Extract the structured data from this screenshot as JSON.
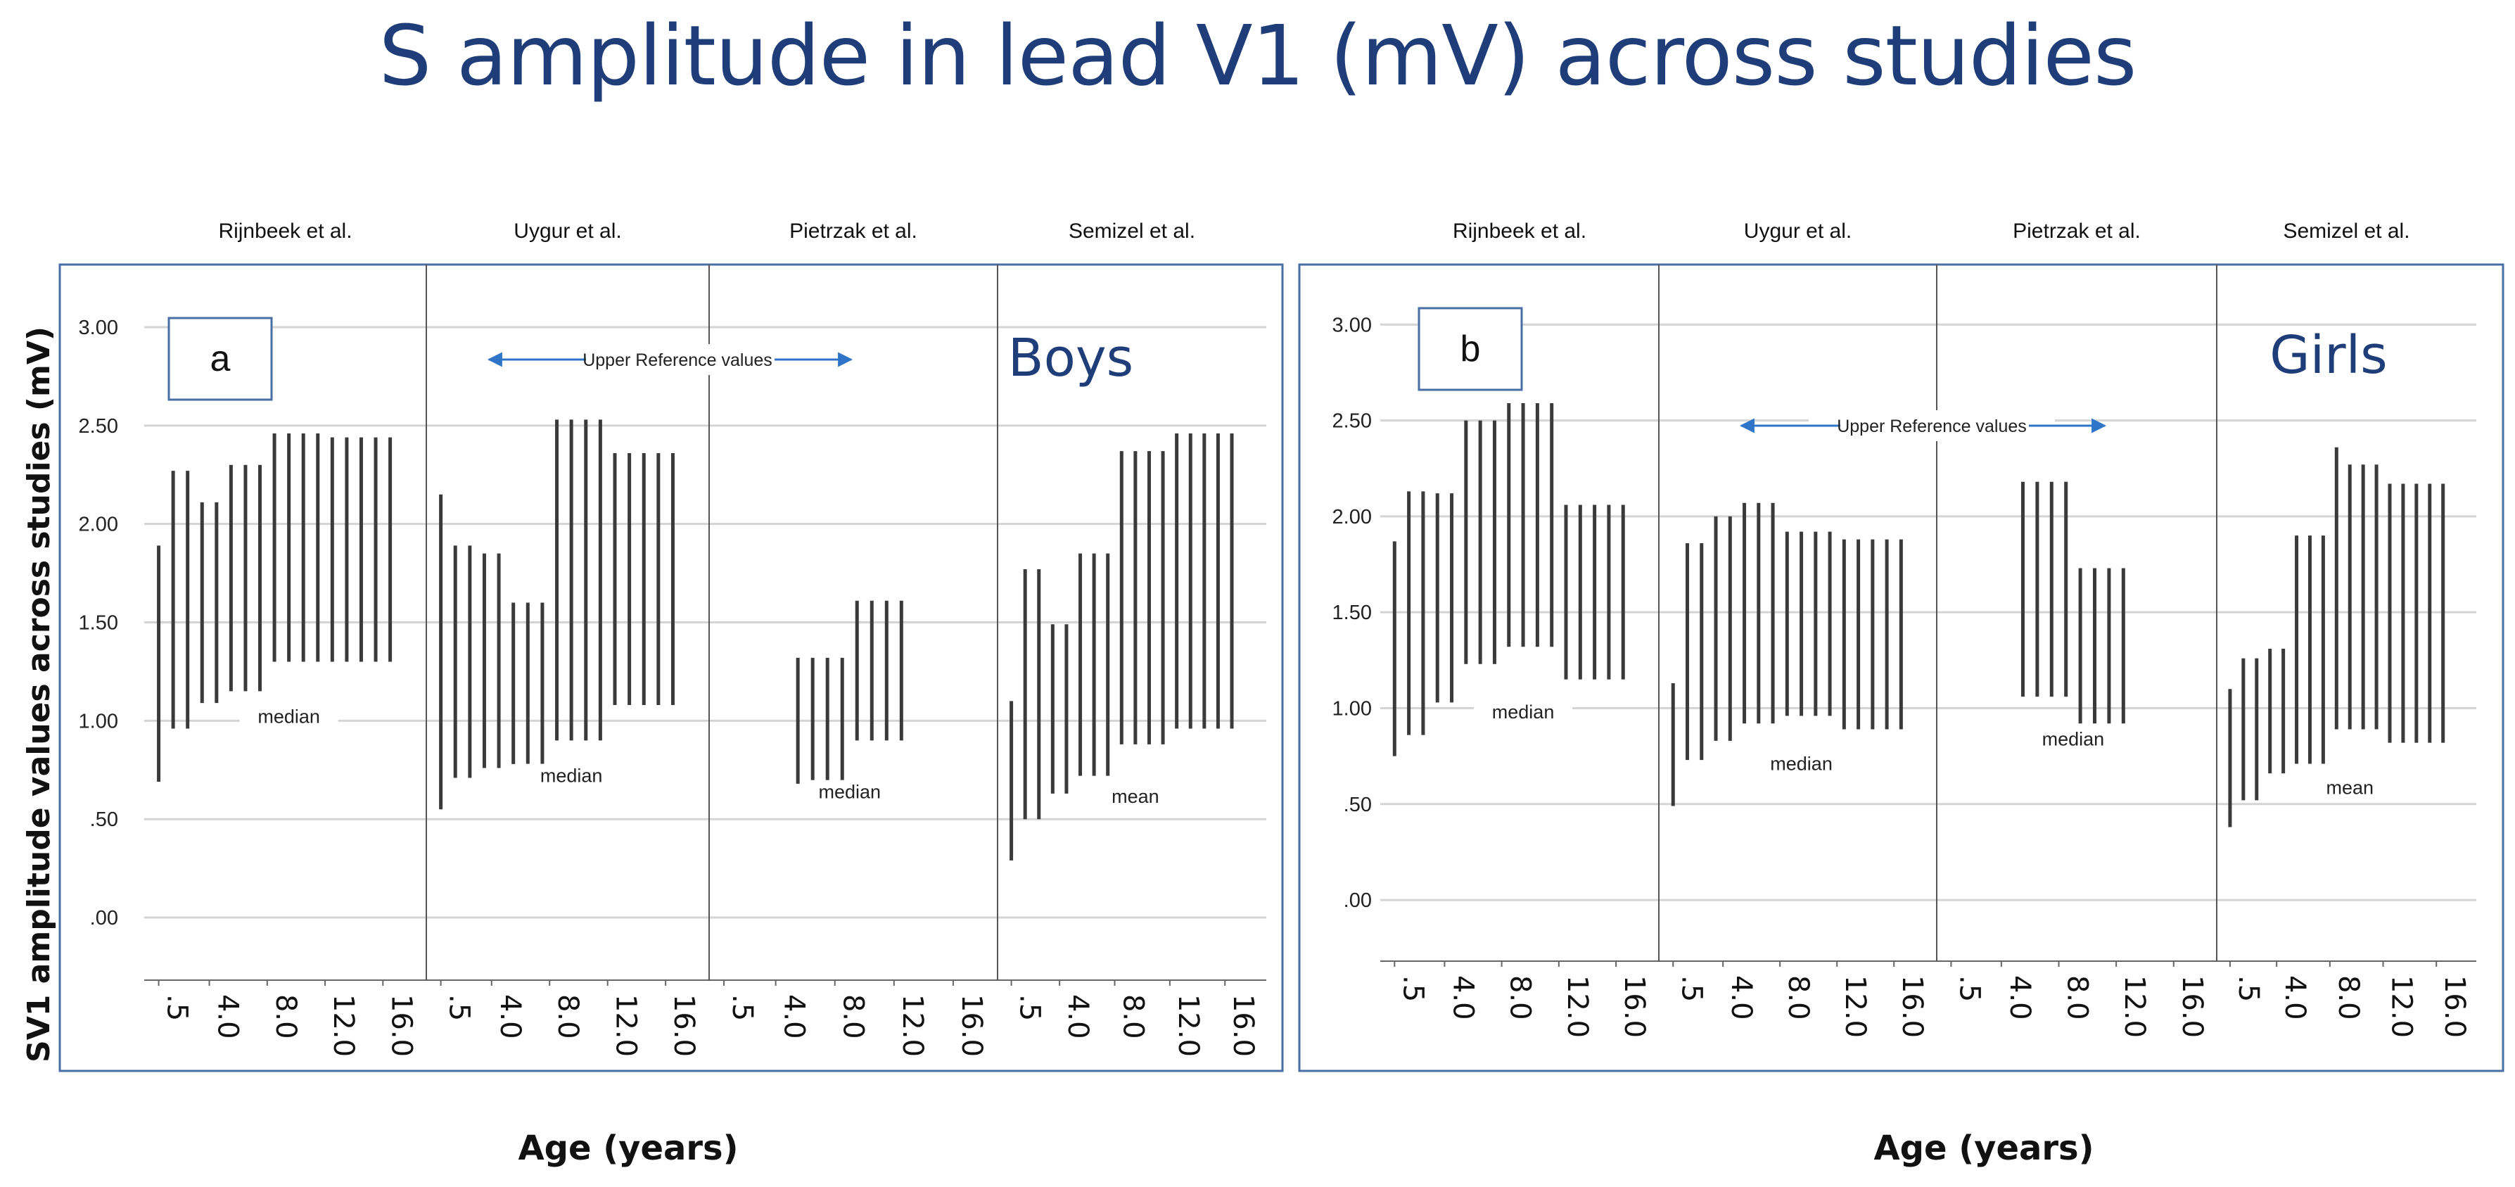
{
  "title": "S amplitude in lead V1 (mV) across studies",
  "y_axis_label": "SV1 amplitude values across studies (mV)",
  "x_axis_label": "Age (years)",
  "chart_data": [
    {
      "type": "range-bar",
      "panel_letter": "a",
      "group_label": "Boys",
      "arrow_note": "Upper Reference values",
      "ylabel": "SV1 amplitude values across studies (mV)",
      "xlabel": "Age (years)",
      "ylim": [
        -0.15,
        3.1
      ],
      "yticks": [
        ".00",
        ".50",
        "1.00",
        "1.50",
        "2.00",
        "2.50",
        "3.00"
      ],
      "grid": true,
      "x_ticks": [
        ".5",
        "4.0",
        "8.0",
        "12.0",
        "16.0"
      ],
      "x_tick_values": [
        0.5,
        4,
        8,
        12,
        16
      ],
      "xlim": [
        -0.5,
        19
      ],
      "facets": [
        {
          "name": "Rijnbeek et al.",
          "stat_label": "median",
          "ranges": [
            {
              "x": 0.5,
              "low": 0.69,
              "high": 1.89
            },
            {
              "x": 1.5,
              "low": 0.96,
              "high": 2.27
            },
            {
              "x": 2.5,
              "low": 0.96,
              "high": 2.27
            },
            {
              "x": 3.5,
              "low": 1.09,
              "high": 2.11
            },
            {
              "x": 4.5,
              "low": 1.09,
              "high": 2.11
            },
            {
              "x": 5.5,
              "low": 1.15,
              "high": 2.3
            },
            {
              "x": 6.5,
              "low": 1.15,
              "high": 2.3
            },
            {
              "x": 7.5,
              "low": 1.15,
              "high": 2.3
            },
            {
              "x": 8.5,
              "low": 1.3,
              "high": 2.46
            },
            {
              "x": 9.5,
              "low": 1.3,
              "high": 2.46
            },
            {
              "x": 10.5,
              "low": 1.3,
              "high": 2.46
            },
            {
              "x": 11.5,
              "low": 1.3,
              "high": 2.46
            },
            {
              "x": 12.5,
              "low": 1.3,
              "high": 2.44
            },
            {
              "x": 13.5,
              "low": 1.3,
              "high": 2.44
            },
            {
              "x": 14.5,
              "low": 1.3,
              "high": 2.44
            },
            {
              "x": 15.5,
              "low": 1.3,
              "high": 2.44
            },
            {
              "x": 16.5,
              "low": 1.3,
              "high": 2.44
            }
          ]
        },
        {
          "name": "Uygur et al.",
          "stat_label": "median",
          "ranges": [
            {
              "x": 0.5,
              "low": 0.55,
              "high": 2.15
            },
            {
              "x": 1.5,
              "low": 0.71,
              "high": 1.89
            },
            {
              "x": 2.5,
              "low": 0.71,
              "high": 1.89
            },
            {
              "x": 3.5,
              "low": 0.76,
              "high": 1.85
            },
            {
              "x": 4.5,
              "low": 0.76,
              "high": 1.85
            },
            {
              "x": 5.5,
              "low": 0.78,
              "high": 1.6
            },
            {
              "x": 6.5,
              "low": 0.78,
              "high": 1.6
            },
            {
              "x": 7.5,
              "low": 0.78,
              "high": 1.6
            },
            {
              "x": 8.5,
              "low": 0.9,
              "high": 2.53
            },
            {
              "x": 9.5,
              "low": 0.9,
              "high": 2.53
            },
            {
              "x": 10.5,
              "low": 0.9,
              "high": 2.53
            },
            {
              "x": 11.5,
              "low": 0.9,
              "high": 2.53
            },
            {
              "x": 12.5,
              "low": 1.08,
              "high": 2.36
            },
            {
              "x": 13.5,
              "low": 1.08,
              "high": 2.36
            },
            {
              "x": 14.5,
              "low": 1.08,
              "high": 2.36
            },
            {
              "x": 15.5,
              "low": 1.08,
              "high": 2.36
            },
            {
              "x": 16.5,
              "low": 1.08,
              "high": 2.36
            }
          ]
        },
        {
          "name": "Pietrzak et al.",
          "stat_label": "median",
          "ranges": [
            {
              "x": 5.5,
              "low": 0.68,
              "high": 1.32
            },
            {
              "x": 6.5,
              "low": 0.68,
              "high": 1.32
            },
            {
              "x": 7.5,
              "low": 0.68,
              "high": 1.32
            },
            {
              "x": 8.5,
              "low": 0.68,
              "high": 1.32
            },
            {
              "x": 9.5,
              "low": 0.9,
              "high": 1.61
            },
            {
              "x": 10.5,
              "low": 0.9,
              "high": 1.61
            },
            {
              "x": 11.5,
              "low": 0.9,
              "high": 1.61
            },
            {
              "x": 12.5,
              "low": 0.9,
              "high": 1.61
            }
          ]
        },
        {
          "name": "Semizel et al.",
          "stat_label": "mean",
          "ranges": [
            {
              "x": 0.5,
              "low": 0.29,
              "high": 1.1
            },
            {
              "x": 1.5,
              "low": 0.5,
              "high": 1.77
            },
            {
              "x": 2.5,
              "low": 0.5,
              "high": 1.77
            },
            {
              "x": 3.5,
              "low": 0.63,
              "high": 1.49
            },
            {
              "x": 4.5,
              "low": 0.63,
              "high": 1.49
            },
            {
              "x": 5.5,
              "low": 0.72,
              "high": 1.85
            },
            {
              "x": 6.5,
              "low": 0.72,
              "high": 1.85
            },
            {
              "x": 7.5,
              "low": 0.72,
              "high": 1.85
            },
            {
              "x": 8.5,
              "low": 0.88,
              "high": 2.37
            },
            {
              "x": 9.5,
              "low": 0.88,
              "high": 2.37
            },
            {
              "x": 10.5,
              "low": 0.88,
              "high": 2.37
            },
            {
              "x": 11.5,
              "low": 0.88,
              "high": 2.37
            },
            {
              "x": 12.5,
              "low": 0.96,
              "high": 2.46
            },
            {
              "x": 13.5,
              "low": 0.96,
              "high": 2.46
            },
            {
              "x": 14.5,
              "low": 0.96,
              "high": 2.46
            },
            {
              "x": 15.5,
              "low": 0.96,
              "high": 2.46
            },
            {
              "x": 16.5,
              "low": 0.96,
              "high": 2.46
            }
          ]
        }
      ]
    },
    {
      "type": "range-bar",
      "panel_letter": "b",
      "group_label": "Girls",
      "arrow_note": "Upper Reference values",
      "ylabel": "SV1 amplitude values across studies (mV)",
      "xlabel": "Age (years)",
      "ylim": [
        -0.15,
        3.1
      ],
      "yticks": [
        ".00",
        ".50",
        "1.00",
        "1.50",
        "2.00",
        "2.50",
        "3.00"
      ],
      "grid": true,
      "x_ticks": [
        ".5",
        "4.0",
        "8.0",
        "12.0",
        "16.0"
      ],
      "x_tick_values": [
        0.5,
        4,
        8,
        12,
        16
      ],
      "xlim": [
        -0.5,
        19
      ],
      "facets": [
        {
          "name": "Rijnbeek et al.",
          "stat_label": "median",
          "ranges": [
            {
              "x": 0.5,
              "low": 0.75,
              "high": 1.87
            },
            {
              "x": 1.5,
              "low": 0.86,
              "high": 2.13
            },
            {
              "x": 2.5,
              "low": 0.86,
              "high": 2.13
            },
            {
              "x": 3.5,
              "low": 1.03,
              "high": 2.12
            },
            {
              "x": 4.5,
              "low": 1.03,
              "high": 2.12
            },
            {
              "x": 5.5,
              "low": 1.23,
              "high": 2.5
            },
            {
              "x": 6.5,
              "low": 1.23,
              "high": 2.5
            },
            {
              "x": 7.5,
              "low": 1.23,
              "high": 2.5
            },
            {
              "x": 8.5,
              "low": 1.32,
              "high": 2.59
            },
            {
              "x": 9.5,
              "low": 1.32,
              "high": 2.59
            },
            {
              "x": 10.5,
              "low": 1.32,
              "high": 2.59
            },
            {
              "x": 11.5,
              "low": 1.32,
              "high": 2.59
            },
            {
              "x": 12.5,
              "low": 1.15,
              "high": 2.06
            },
            {
              "x": 13.5,
              "low": 1.15,
              "high": 2.06
            },
            {
              "x": 14.5,
              "low": 1.15,
              "high": 2.06
            },
            {
              "x": 15.5,
              "low": 1.15,
              "high": 2.06
            },
            {
              "x": 16.5,
              "low": 1.15,
              "high": 2.06
            }
          ]
        },
        {
          "name": "Uygur et al.",
          "stat_label": "median",
          "ranges": [
            {
              "x": 0.5,
              "low": 0.49,
              "high": 1.13
            },
            {
              "x": 1.5,
              "low": 0.73,
              "high": 1.86
            },
            {
              "x": 2.5,
              "low": 0.73,
              "high": 1.86
            },
            {
              "x": 3.5,
              "low": 0.83,
              "high": 2.0
            },
            {
              "x": 4.5,
              "low": 0.83,
              "high": 2.0
            },
            {
              "x": 5.5,
              "low": 0.92,
              "high": 2.07
            },
            {
              "x": 6.5,
              "low": 0.92,
              "high": 2.07
            },
            {
              "x": 7.5,
              "low": 0.92,
              "high": 2.07
            },
            {
              "x": 8.5,
              "low": 0.96,
              "high": 1.92
            },
            {
              "x": 9.5,
              "low": 0.96,
              "high": 1.92
            },
            {
              "x": 10.5,
              "low": 0.96,
              "high": 1.92
            },
            {
              "x": 11.5,
              "low": 0.96,
              "high": 1.92
            },
            {
              "x": 12.5,
              "low": 0.89,
              "high": 1.88
            },
            {
              "x": 13.5,
              "low": 0.89,
              "high": 1.88
            },
            {
              "x": 14.5,
              "low": 0.89,
              "high": 1.88
            },
            {
              "x": 15.5,
              "low": 0.89,
              "high": 1.88
            },
            {
              "x": 16.5,
              "low": 0.89,
              "high": 1.88
            }
          ]
        },
        {
          "name": "Pietrzak et al.",
          "stat_label": "median",
          "ranges": [
            {
              "x": 5.5,
              "low": 1.06,
              "high": 2.18
            },
            {
              "x": 6.5,
              "low": 1.06,
              "high": 2.18
            },
            {
              "x": 7.5,
              "low": 1.06,
              "high": 2.18
            },
            {
              "x": 8.5,
              "low": 1.06,
              "high": 2.18
            },
            {
              "x": 9.5,
              "low": 0.92,
              "high": 1.73
            },
            {
              "x": 10.5,
              "low": 0.92,
              "high": 1.73
            },
            {
              "x": 11.5,
              "low": 0.92,
              "high": 1.73
            },
            {
              "x": 12.5,
              "low": 0.92,
              "high": 1.73
            }
          ]
        },
        {
          "name": "Semizel et al.",
          "stat_label": "mean",
          "ranges": [
            {
              "x": 0.5,
              "low": 0.38,
              "high": 1.1
            },
            {
              "x": 1.5,
              "low": 0.52,
              "high": 1.26
            },
            {
              "x": 2.5,
              "low": 0.52,
              "high": 1.26
            },
            {
              "x": 3.5,
              "low": 0.66,
              "high": 1.31
            },
            {
              "x": 4.5,
              "low": 0.66,
              "high": 1.31
            },
            {
              "x": 5.5,
              "low": 0.71,
              "high": 1.9
            },
            {
              "x": 6.5,
              "low": 0.71,
              "high": 1.9
            },
            {
              "x": 7.5,
              "low": 0.71,
              "high": 1.9
            },
            {
              "x": 8.5,
              "low": 0.89,
              "high": 2.36
            },
            {
              "x": 9.5,
              "low": 0.89,
              "high": 2.27
            },
            {
              "x": 10.5,
              "low": 0.89,
              "high": 2.27
            },
            {
              "x": 11.5,
              "low": 0.89,
              "high": 2.27
            },
            {
              "x": 12.5,
              "low": 0.82,
              "high": 2.17
            },
            {
              "x": 13.5,
              "low": 0.82,
              "high": 2.17
            },
            {
              "x": 14.5,
              "low": 0.82,
              "high": 2.17
            },
            {
              "x": 15.5,
              "low": 0.82,
              "high": 2.17
            },
            {
              "x": 16.5,
              "low": 0.82,
              "high": 2.17
            }
          ]
        }
      ]
    }
  ],
  "colors": {
    "title": "#1f3e79",
    "group_label": "#1f3e79",
    "panel_border": "#4a6fa5",
    "bars": "#3a3a3a",
    "grid": "#d4d4d4",
    "arrows": "#2e75c8"
  }
}
